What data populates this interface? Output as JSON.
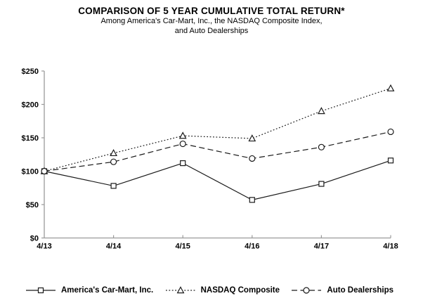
{
  "header": {
    "title": "COMPARISON OF 5 YEAR CUMULATIVE TOTAL RETURN*",
    "subtitle_line1": "Among America's Car-Mart, Inc., the NASDAQ Composite Index,",
    "subtitle_line2": "and Auto Dealerships"
  },
  "chart_data": {
    "type": "line",
    "categories": [
      "4/13",
      "4/14",
      "4/15",
      "4/16",
      "4/17",
      "4/18"
    ],
    "series": [
      {
        "name": "America's Car-Mart, Inc.",
        "marker": "square",
        "line_style": "solid",
        "values": [
          100,
          78,
          112,
          57,
          81,
          116
        ]
      },
      {
        "name": "NASDAQ Composite",
        "marker": "triangle",
        "line_style": "dotted",
        "values": [
          100,
          127,
          153,
          149,
          190,
          224
        ]
      },
      {
        "name": "Auto Dealerships",
        "marker": "circle",
        "line_style": "dashed",
        "values": [
          100,
          114,
          141,
          119,
          136,
          159
        ]
      }
    ],
    "y_ticks": [
      "$0",
      "$50",
      "$100",
      "$150",
      "$200",
      "$250"
    ],
    "ylim": [
      0,
      250
    ],
    "xlabel": "",
    "ylabel": "",
    "grid": false,
    "legend_position": "bottom",
    "line_color": "#1a1a1a",
    "marker_fill": "#ffffff",
    "axis_color": "#9a9a9a",
    "label_color": "#000000"
  }
}
